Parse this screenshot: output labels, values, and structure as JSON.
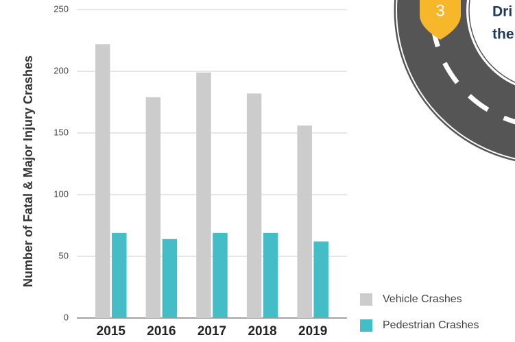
{
  "chart_data": {
    "type": "bar",
    "y_label": "Number of Fatal & Major Injury Crashes",
    "categories": [
      "2015",
      "2016",
      "2017",
      "2018",
      "2019"
    ],
    "series": [
      {
        "name": "Vehicle Crashes",
        "color": "#cccccc",
        "values": [
          222,
          179,
          199,
          182,
          156
        ]
      },
      {
        "name": "Pedestrian Crashes",
        "color": "#45bdc6",
        "values": [
          69,
          64,
          69,
          69,
          62
        ]
      }
    ],
    "ylim": [
      0,
      250
    ],
    "yticks": [
      0,
      50,
      100,
      150,
      200,
      250
    ],
    "grid": true,
    "legend": "bottom-right"
  },
  "graphic": {
    "marker": "3",
    "lines": [
      "Dri",
      "the"
    ]
  }
}
